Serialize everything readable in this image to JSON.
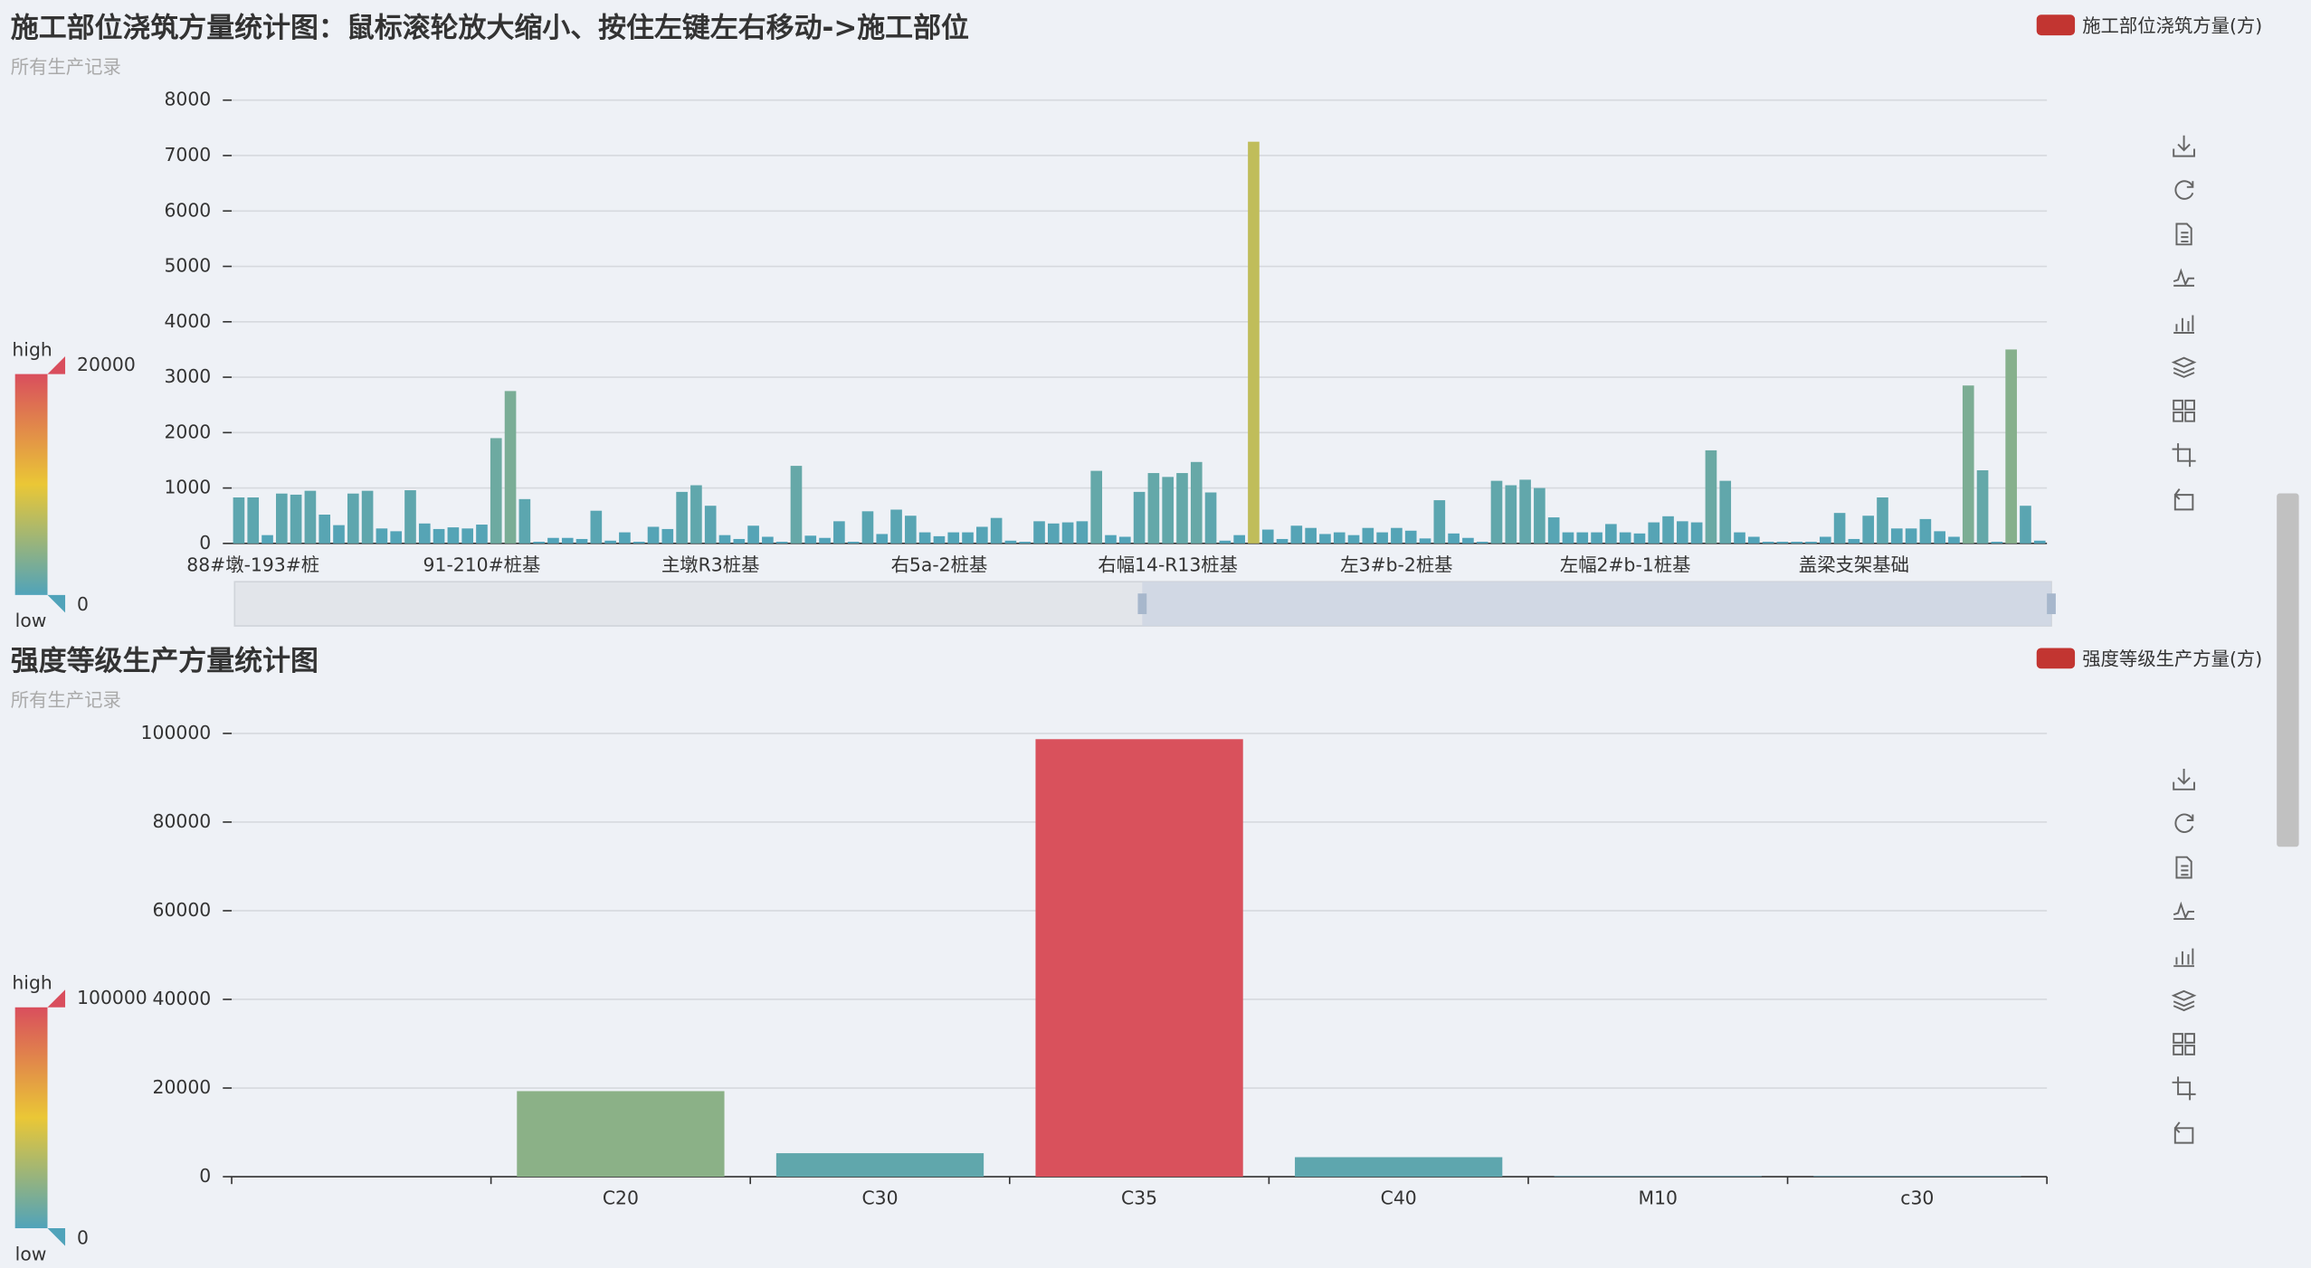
{
  "chart_data": [
    {
      "type": "bar",
      "title": "施工部位浇筑方量统计图：鼠标滚轮放大缩小、按住左键左右移动->施工部位",
      "subtitle": "所有生产记录",
      "categories": [
        null,
        "88#墩-193#桩",
        null,
        null,
        null,
        null,
        null,
        null,
        null,
        null,
        null,
        null,
        null,
        null,
        null,
        null,
        null,
        "91-210#桩基",
        null,
        null,
        null,
        null,
        null,
        null,
        null,
        null,
        null,
        null,
        null,
        null,
        null,
        null,
        null,
        "主墩R3桩基",
        null,
        null,
        null,
        null,
        null,
        null,
        null,
        null,
        null,
        null,
        null,
        null,
        null,
        null,
        null,
        "右5a-2桩基",
        null,
        null,
        null,
        null,
        null,
        null,
        null,
        null,
        null,
        null,
        null,
        null,
        null,
        null,
        null,
        "右幅14-R13桩基",
        null,
        null,
        null,
        null,
        null,
        null,
        null,
        null,
        null,
        null,
        null,
        null,
        null,
        null,
        null,
        "左3#b-2桩基",
        null,
        null,
        null,
        null,
        null,
        null,
        null,
        null,
        null,
        null,
        null,
        null,
        null,
        null,
        null,
        "左幅2#b-1桩基",
        null,
        null,
        null,
        null,
        null,
        null,
        null,
        null,
        null,
        null,
        null,
        null,
        null,
        null,
        null,
        "盖梁支架基础",
        null,
        null,
        null,
        null,
        null,
        null,
        null,
        null,
        null,
        null,
        null,
        null,
        null
      ],
      "series": [
        {
          "name": "施工部位浇筑方量(方)",
          "color": "#c23531",
          "values": [
            830,
            830,
            150,
            900,
            880,
            950,
            520,
            330,
            900,
            950,
            270,
            220,
            960,
            360,
            260,
            290,
            270,
            340,
            1900,
            2750,
            800,
            30,
            100,
            100,
            80,
            590,
            50,
            200,
            30,
            300,
            260,
            930,
            1050,
            680,
            150,
            80,
            320,
            120,
            30,
            1400,
            140,
            100,
            400,
            30,
            580,
            170,
            610,
            500,
            200,
            130,
            200,
            200,
            300,
            460,
            50,
            30,
            400,
            360,
            380,
            400,
            1310,
            150,
            120,
            930,
            1270,
            1200,
            1270,
            1470,
            920,
            50,
            150,
            7250,
            250,
            80,
            320,
            280,
            170,
            200,
            150,
            280,
            200,
            280,
            230,
            90,
            780,
            180,
            100,
            30,
            1130,
            1050,
            1150,
            1000,
            470,
            200,
            200,
            200,
            350,
            200,
            180,
            380,
            490,
            400,
            380,
            1680,
            1130,
            200,
            120,
            30,
            30,
            30,
            30,
            120,
            550,
            80,
            500,
            830,
            270,
            270,
            440,
            220,
            120,
            2850,
            1320,
            30,
            3500,
            680,
            50
          ]
        }
      ],
      "ylim": [
        0,
        8000
      ],
      "yticks": [
        0,
        1000,
        2000,
        3000,
        4000,
        5000,
        6000,
        7000,
        8000
      ],
      "grid": true,
      "visual_map": {
        "range": [
          0,
          20000
        ],
        "text": [
          "high",
          "low"
        ],
        "colors": [
          "#50a3ba",
          "#eac736",
          "#d94e5d"
        ]
      }
    },
    {
      "type": "bar",
      "title": "强度等级生产方量统计图",
      "subtitle": "所有生产记录",
      "categories": [
        null,
        "C20",
        "C30",
        "C35",
        "C40",
        "M10",
        "c30"
      ],
      "series": [
        {
          "name": "强度等级生产方量(方)",
          "color": "#c23531",
          "values": [
            0,
            19300,
            5300,
            98700,
            4400,
            100,
            100
          ]
        }
      ],
      "ylim": [
        0,
        100000
      ],
      "yticks": [
        0,
        20000,
        40000,
        60000,
        80000,
        100000
      ],
      "grid": true,
      "visual_map": {
        "range": [
          0,
          100000
        ],
        "text": [
          "high",
          "low"
        ],
        "colors": [
          "#50a3ba",
          "#eac736",
          "#d94e5d"
        ]
      }
    }
  ]
}
